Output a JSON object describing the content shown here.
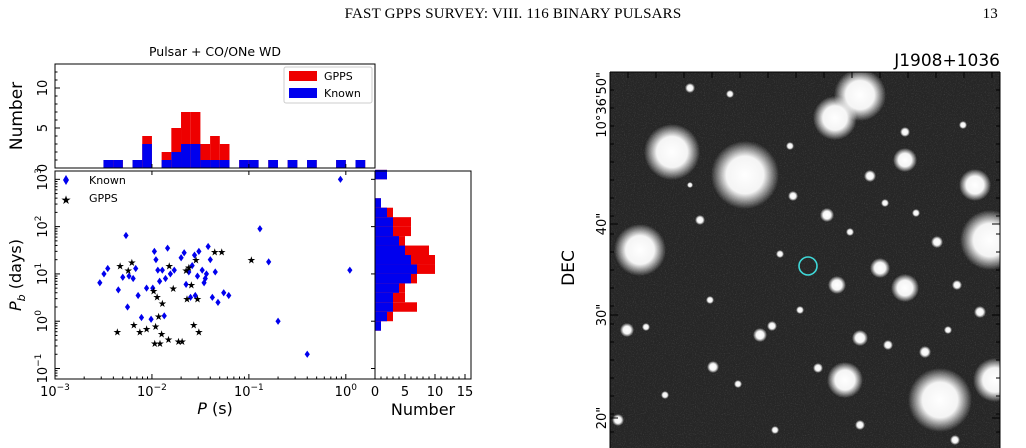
{
  "header": {
    "running_title": "FAST GPPS SURVEY: VIII. 116 BINARY PULSARS",
    "page_number": "13"
  },
  "chart_data": [
    {
      "type": "scatter",
      "title": "Pulsar + CO/ONe WD",
      "xlabel": "P (s)",
      "ylabel": "Pb (days)",
      "xscale": "log",
      "yscale": "log",
      "xlim": [
        0.001,
        2
      ],
      "ylim": [
        0.06,
        1500
      ],
      "xticks": [
        "10^-3",
        "10^-2",
        "10^-1",
        "10^0"
      ],
      "yticks": [
        "10^-1",
        "10^0",
        "10^1",
        "10^2",
        "10^3"
      ],
      "legend": {
        "position": "upper-left",
        "entries": [
          "Known",
          "GPPS"
        ]
      },
      "series": [
        {
          "name": "Known",
          "color": "#0000ee",
          "marker": "diamond",
          "points": [
            [
              0.0029,
              6.5
            ],
            [
              0.0032,
              10
            ],
            [
              0.0035,
              13
            ],
            [
              0.0045,
              4.6
            ],
            [
              0.005,
              8.5
            ],
            [
              0.0054,
              65
            ],
            [
              0.0056,
              2.0
            ],
            [
              0.0058,
              9
            ],
            [
              0.0064,
              8
            ],
            [
              0.0068,
              13
            ],
            [
              0.0072,
              3.5
            ],
            [
              0.0078,
              1.2
            ],
            [
              0.0088,
              5
            ],
            [
              0.0098,
              1.1
            ],
            [
              0.0102,
              5
            ],
            [
              0.0106,
              30
            ],
            [
              0.011,
              20
            ],
            [
              0.0115,
              12
            ],
            [
              0.012,
              7
            ],
            [
              0.0128,
              12
            ],
            [
              0.0134,
              1.3
            ],
            [
              0.0138,
              8
            ],
            [
              0.0145,
              35
            ],
            [
              0.0155,
              10
            ],
            [
              0.017,
              12
            ],
            [
              0.02,
              22
            ],
            [
              0.0215,
              28
            ],
            [
              0.0225,
              6
            ],
            [
              0.024,
              11
            ],
            [
              0.025,
              3.2
            ],
            [
              0.026,
              15
            ],
            [
              0.0275,
              25
            ],
            [
              0.028,
              3.5
            ],
            [
              0.0295,
              9
            ],
            [
              0.0305,
              30
            ],
            [
              0.033,
              12
            ],
            [
              0.0345,
              6.5
            ],
            [
              0.0355,
              8
            ],
            [
              0.0365,
              10
            ],
            [
              0.038,
              38
            ],
            [
              0.04,
              20
            ],
            [
              0.042,
              3.2
            ],
            [
              0.045,
              11
            ],
            [
              0.048,
              2.5
            ],
            [
              0.055,
              4
            ],
            [
              0.062,
              3.5
            ],
            [
              0.13,
              90
            ],
            [
              0.16,
              18
            ],
            [
              0.2,
              1
            ],
            [
              0.4,
              0.2
            ],
            [
              0.88,
              1000
            ],
            [
              1.1,
              12
            ]
          ]
        },
        {
          "name": "GPPS",
          "color": "#ee0000",
          "marker": "star",
          "points": [
            [
              0.0044,
              0.6
            ],
            [
              0.0047,
              15
            ],
            [
              0.0057,
              12
            ],
            [
              0.0062,
              18
            ],
            [
              0.0065,
              0.85
            ],
            [
              0.0075,
              0.6
            ],
            [
              0.0088,
              0.7
            ],
            [
              0.0104,
              4.5
            ],
            [
              0.0107,
              0.35
            ],
            [
              0.0109,
              0.8
            ],
            [
              0.0113,
              3.3
            ],
            [
              0.0117,
              1.3
            ],
            [
              0.0121,
              0.35
            ],
            [
              0.0126,
              0.55
            ],
            [
              0.0128,
              2.4
            ],
            [
              0.0148,
              0.42
            ],
            [
              0.0151,
              15
            ],
            [
              0.0166,
              5
            ],
            [
              0.0188,
              0.38
            ],
            [
              0.0205,
              0.38
            ],
            [
              0.0225,
              12
            ],
            [
              0.023,
              3
            ],
            [
              0.024,
              14
            ],
            [
              0.0255,
              6
            ],
            [
              0.027,
              0.85
            ],
            [
              0.0285,
              20
            ],
            [
              0.0295,
              3
            ],
            [
              0.0305,
              0.6
            ],
            [
              0.0445,
              30
            ],
            [
              0.0525,
              30
            ],
            [
              0.106,
              20
            ]
          ]
        }
      ]
    },
    {
      "type": "bar",
      "orientation": "vertical",
      "stacked": true,
      "ylabel": "Number",
      "ylim": [
        0,
        13
      ],
      "yticks": [
        "0",
        "5",
        "10"
      ],
      "legend": {
        "position": "upper-right",
        "entries": [
          "GPPS",
          "Known"
        ]
      },
      "x_edges_log10": [
        -3.0,
        -2.9,
        -2.8,
        -2.7,
        -2.6,
        -2.5,
        -2.4,
        -2.3,
        -2.2,
        -2.1,
        -2.0,
        -1.9,
        -1.8,
        -1.7,
        -1.6,
        -1.5,
        -1.4,
        -1.3,
        -1.2,
        -1.1,
        -1.0,
        -0.9,
        -0.8,
        -0.7,
        -0.6,
        -0.5,
        -0.4,
        -0.3,
        -0.2,
        -0.1,
        0.0,
        0.1,
        0.2,
        0.3,
        0.4
      ],
      "series": [
        {
          "name": "Known",
          "color": "#0000ee",
          "values": [
            0,
            0,
            0,
            0,
            0,
            1,
            1,
            0,
            1,
            3,
            0,
            1,
            2,
            3,
            3,
            1,
            1,
            1,
            0,
            1,
            1,
            0,
            1,
            0,
            1,
            0,
            1,
            0,
            0,
            1,
            0,
            1,
            0,
            0
          ]
        },
        {
          "name": "GPPS",
          "color": "#ee0000",
          "values": [
            0,
            0,
            0,
            0,
            0,
            0,
            0,
            0,
            0,
            1,
            0,
            1,
            3,
            4,
            4,
            2,
            3,
            2,
            0,
            0,
            0,
            0,
            0,
            0,
            0,
            0,
            0,
            0,
            0,
            0,
            0,
            0,
            0,
            0
          ]
        }
      ]
    },
    {
      "type": "bar",
      "orientation": "horizontal",
      "stacked": true,
      "xlabel": "Number",
      "xlim": [
        0,
        16
      ],
      "xticks": [
        "0",
        "5",
        "10",
        "15"
      ],
      "y_edges_log10": [
        -1.0,
        -0.8,
        -0.6,
        -0.4,
        -0.2,
        0.0,
        0.2,
        0.4,
        0.6,
        0.8,
        1.0,
        1.2,
        1.4,
        1.6,
        1.8,
        2.0,
        2.2,
        2.4,
        2.6,
        2.8,
        3.0,
        3.2
      ],
      "series": [
        {
          "name": "Known",
          "color": "#0000ee",
          "values": [
            0,
            0,
            0,
            0,
            1,
            2,
            3,
            3,
            4,
            6,
            7,
            6,
            5,
            4,
            3,
            3,
            2,
            1,
            0,
            0,
            2
          ]
        },
        {
          "name": "GPPS",
          "color": "#ee0000",
          "values": [
            0,
            0,
            0,
            0,
            0,
            1,
            4,
            2,
            1,
            1,
            3,
            4,
            4,
            1,
            3,
            3,
            1,
            0,
            0,
            0,
            0
          ]
        }
      ]
    }
  ],
  "image_panel": {
    "title": "J1908+1036",
    "ylabel": "DEC",
    "yticks": [
      "10°36'50\"",
      "40\"",
      "30\"",
      "20\""
    ],
    "marker_color": "#3fd8d8"
  }
}
